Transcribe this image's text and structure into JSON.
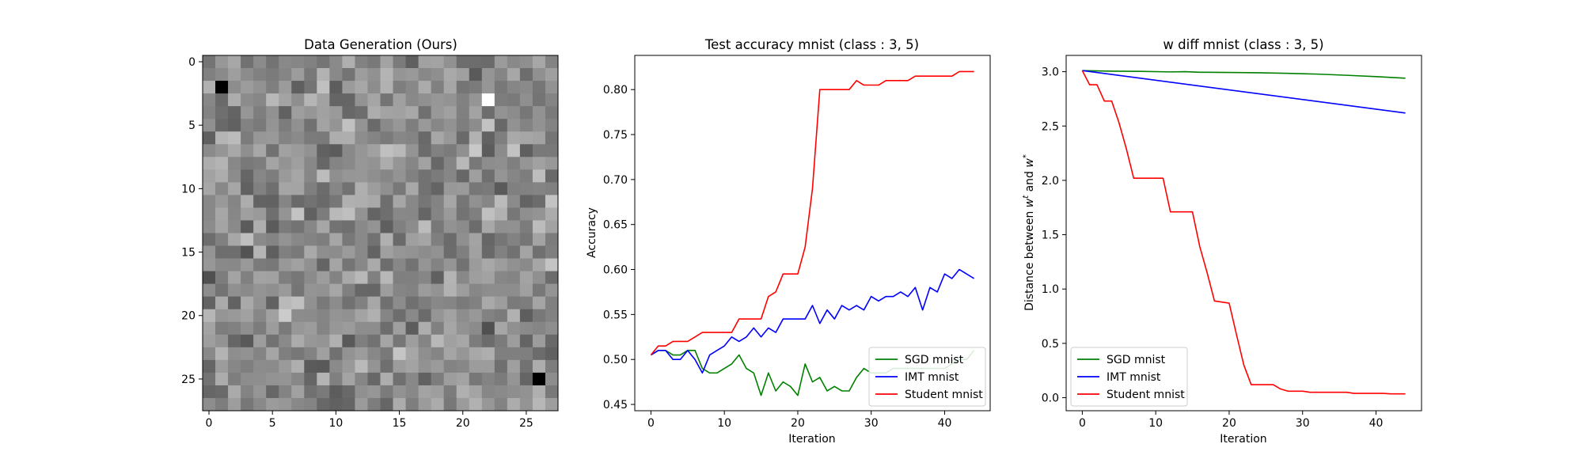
{
  "chart_data": [
    {
      "type": "heatmap",
      "title": "Data Generation (Ours)",
      "xlabel": "",
      "ylabel": "",
      "rows": 28,
      "cols": 28,
      "xlim": [
        -0.5,
        27.5
      ],
      "ylim": [
        27.5,
        -0.5
      ],
      "xticks": [
        0,
        5,
        10,
        15,
        20,
        25
      ],
      "yticks": [
        0,
        5,
        10,
        15,
        20,
        25
      ],
      "colormap": "gray",
      "notable_pixels": [
        {
          "row": 2,
          "col": 1,
          "value": 0.0
        },
        {
          "row": 3,
          "col": 22,
          "value": 1.0
        },
        {
          "row": 25,
          "col": 26,
          "value": 0.0
        }
      ]
    },
    {
      "type": "line",
      "title": "Test accuracy mnist (class : 3, 5)",
      "xlabel": "Iteration",
      "ylabel": "Accuracy",
      "xlim": [
        -2.2,
        46.2
      ],
      "ylim": [
        0.443,
        0.838
      ],
      "xticks": [
        0,
        10,
        20,
        30,
        40
      ],
      "yticks": [
        0.45,
        0.5,
        0.55,
        0.6,
        0.65,
        0.7,
        0.75,
        0.8
      ],
      "legend": "lower-right",
      "grid": false,
      "series": [
        {
          "name": "SGD mnist",
          "color": "#008000",
          "x": [
            0,
            1,
            2,
            3,
            4,
            5,
            6,
            7,
            8,
            9,
            10,
            11,
            12,
            13,
            14,
            15,
            16,
            17,
            18,
            19,
            20,
            21,
            22,
            23,
            24,
            25,
            26,
            27,
            28,
            29,
            30,
            31,
            32,
            33,
            34,
            35,
            36,
            37,
            38,
            39,
            40,
            41,
            42,
            43,
            44
          ],
          "y": [
            0.505,
            0.51,
            0.51,
            0.505,
            0.505,
            0.51,
            0.51,
            0.49,
            0.485,
            0.485,
            0.49,
            0.495,
            0.505,
            0.49,
            0.485,
            0.46,
            0.485,
            0.465,
            0.475,
            0.47,
            0.46,
            0.495,
            0.475,
            0.48,
            0.465,
            0.47,
            0.465,
            0.465,
            0.48,
            0.49,
            0.485,
            0.485,
            0.485,
            0.49,
            0.49,
            0.49,
            0.49,
            0.49,
            0.49,
            0.49,
            0.49,
            0.495,
            0.5,
            0.5,
            0.51
          ]
        },
        {
          "name": "IMT mnist",
          "color": "#0000ff",
          "x": [
            0,
            1,
            2,
            3,
            4,
            5,
            6,
            7,
            8,
            9,
            10,
            11,
            12,
            13,
            14,
            15,
            16,
            17,
            18,
            19,
            20,
            21,
            22,
            23,
            24,
            25,
            26,
            27,
            28,
            29,
            30,
            31,
            32,
            33,
            34,
            35,
            36,
            37,
            38,
            39,
            40,
            41,
            42,
            43,
            44
          ],
          "y": [
            0.505,
            0.51,
            0.51,
            0.5,
            0.5,
            0.51,
            0.5,
            0.485,
            0.505,
            0.51,
            0.515,
            0.525,
            0.52,
            0.525,
            0.535,
            0.525,
            0.535,
            0.53,
            0.545,
            0.545,
            0.545,
            0.545,
            0.56,
            0.54,
            0.555,
            0.545,
            0.56,
            0.555,
            0.56,
            0.555,
            0.57,
            0.565,
            0.57,
            0.57,
            0.575,
            0.57,
            0.58,
            0.555,
            0.58,
            0.575,
            0.595,
            0.59,
            0.6,
            0.595,
            0.59
          ]
        },
        {
          "name": "Student mnist",
          "color": "#ff0000",
          "x": [
            0,
            1,
            2,
            3,
            4,
            5,
            6,
            7,
            8,
            9,
            10,
            11,
            12,
            13,
            14,
            15,
            16,
            17,
            18,
            19,
            20,
            21,
            22,
            23,
            24,
            25,
            26,
            27,
            28,
            29,
            30,
            31,
            32,
            33,
            34,
            35,
            36,
            37,
            38,
            39,
            40,
            41,
            42,
            43,
            44
          ],
          "y": [
            0.505,
            0.515,
            0.515,
            0.52,
            0.52,
            0.52,
            0.525,
            0.53,
            0.53,
            0.53,
            0.53,
            0.53,
            0.545,
            0.545,
            0.545,
            0.545,
            0.57,
            0.575,
            0.595,
            0.595,
            0.595,
            0.625,
            0.69,
            0.8,
            0.8,
            0.8,
            0.8,
            0.8,
            0.81,
            0.805,
            0.805,
            0.805,
            0.81,
            0.81,
            0.81,
            0.81,
            0.815,
            0.815,
            0.815,
            0.815,
            0.815,
            0.815,
            0.82,
            0.82,
            0.82
          ]
        }
      ]
    },
    {
      "type": "line",
      "title": "w diff mnist (class : 3, 5)",
      "xlabel": "Iteration",
      "ylabel_prefix": "Distance between ",
      "ylabel_w1": "w",
      "ylabel_s1": "t",
      "ylabel_mid": " and ",
      "ylabel_w2": "w",
      "ylabel_s2": "*",
      "xlim": [
        -2.2,
        46.2
      ],
      "ylim": [
        -0.12,
        3.15
      ],
      "xticks": [
        0,
        10,
        20,
        30,
        40
      ],
      "yticks": [
        0.0,
        0.5,
        1.0,
        1.5,
        2.0,
        2.5,
        3.0
      ],
      "ytick_format": 1,
      "legend": "lower-left",
      "grid": false,
      "series": [
        {
          "name": "SGD mnist",
          "color": "#008000",
          "x": [
            0,
            4,
            8,
            12,
            14,
            16,
            20,
            24,
            28,
            32,
            36,
            40,
            44
          ],
          "y": [
            3.01,
            3.005,
            3.003,
            2.998,
            3.0,
            2.995,
            2.993,
            2.99,
            2.985,
            2.978,
            2.967,
            2.955,
            2.94
          ]
        },
        {
          "name": "IMT mnist",
          "color": "#0000ff",
          "x": [
            0,
            44
          ],
          "y": [
            3.01,
            2.62
          ]
        },
        {
          "name": "Student mnist",
          "color": "#ff0000",
          "x": [
            0,
            1,
            2,
            3,
            4,
            5,
            6,
            7,
            8,
            9,
            10,
            11,
            12,
            13,
            14,
            15,
            16,
            17,
            18,
            19,
            20,
            21,
            22,
            23,
            24,
            25,
            26,
            27,
            28,
            29,
            30,
            31,
            32,
            33,
            34,
            35,
            36,
            37,
            38,
            39,
            40,
            41,
            42,
            43,
            44
          ],
          "y": [
            3.01,
            2.88,
            2.88,
            2.73,
            2.73,
            2.53,
            2.29,
            2.02,
            2.02,
            2.02,
            2.02,
            2.02,
            1.71,
            1.71,
            1.71,
            1.71,
            1.39,
            1.15,
            0.89,
            0.88,
            0.87,
            0.58,
            0.3,
            0.12,
            0.12,
            0.12,
            0.12,
            0.08,
            0.06,
            0.06,
            0.06,
            0.05,
            0.05,
            0.05,
            0.05,
            0.05,
            0.05,
            0.04,
            0.04,
            0.04,
            0.04,
            0.04,
            0.035,
            0.035,
            0.035
          ]
        }
      ]
    }
  ]
}
